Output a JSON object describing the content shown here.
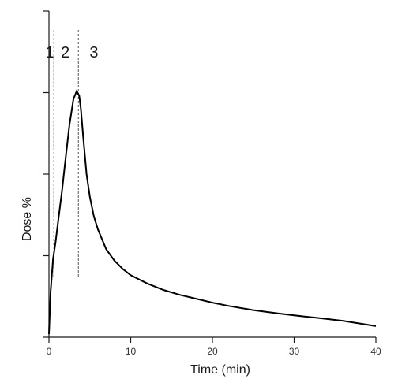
{
  "chart_data": {
    "type": "line",
    "title": "",
    "xlabel": "Time (min)",
    "ylabel": "Dose %",
    "xlim": [
      0,
      40
    ],
    "ylim": [
      0,
      100
    ],
    "x_ticks": [
      0,
      10,
      20,
      30,
      40
    ],
    "x_tick_labels": [
      "0",
      "10",
      "20",
      "30",
      "40"
    ],
    "y_ticks": [
      0,
      25,
      50,
      75,
      100
    ],
    "grid": false,
    "legend": "none",
    "series": [
      {
        "x": [
          0,
          0.2,
          0.5,
          0.8,
          1.2,
          1.6,
          2.0,
          2.5,
          3.0,
          3.4,
          3.7,
          3.9,
          4.2,
          4.6,
          5.0,
          5.5,
          6.0,
          7.0,
          8.0,
          9.0,
          10.0,
          12.0,
          14.0,
          16.0,
          18.0,
          20.0,
          22.0,
          25.0,
          28.0,
          30.0,
          33.0,
          36.0,
          40.0
        ],
        "y": [
          1,
          14,
          24,
          29,
          37,
          45,
          54,
          65,
          73,
          75.5,
          74,
          70,
          61,
          50,
          43,
          37,
          33,
          27,
          23.5,
          21,
          19,
          16.5,
          14.5,
          13,
          11.8,
          10.6,
          9.6,
          8.3,
          7.3,
          6.7,
          5.9,
          5.0,
          3.4
        ]
      }
    ],
    "annotations": {
      "phase_lines_x": [
        0.6,
        3.6
      ],
      "phase_labels": [
        {
          "text": "1",
          "x": 0.1
        },
        {
          "text": "2",
          "x": 2.0
        },
        {
          "text": "3",
          "x": 5.5
        }
      ]
    }
  }
}
